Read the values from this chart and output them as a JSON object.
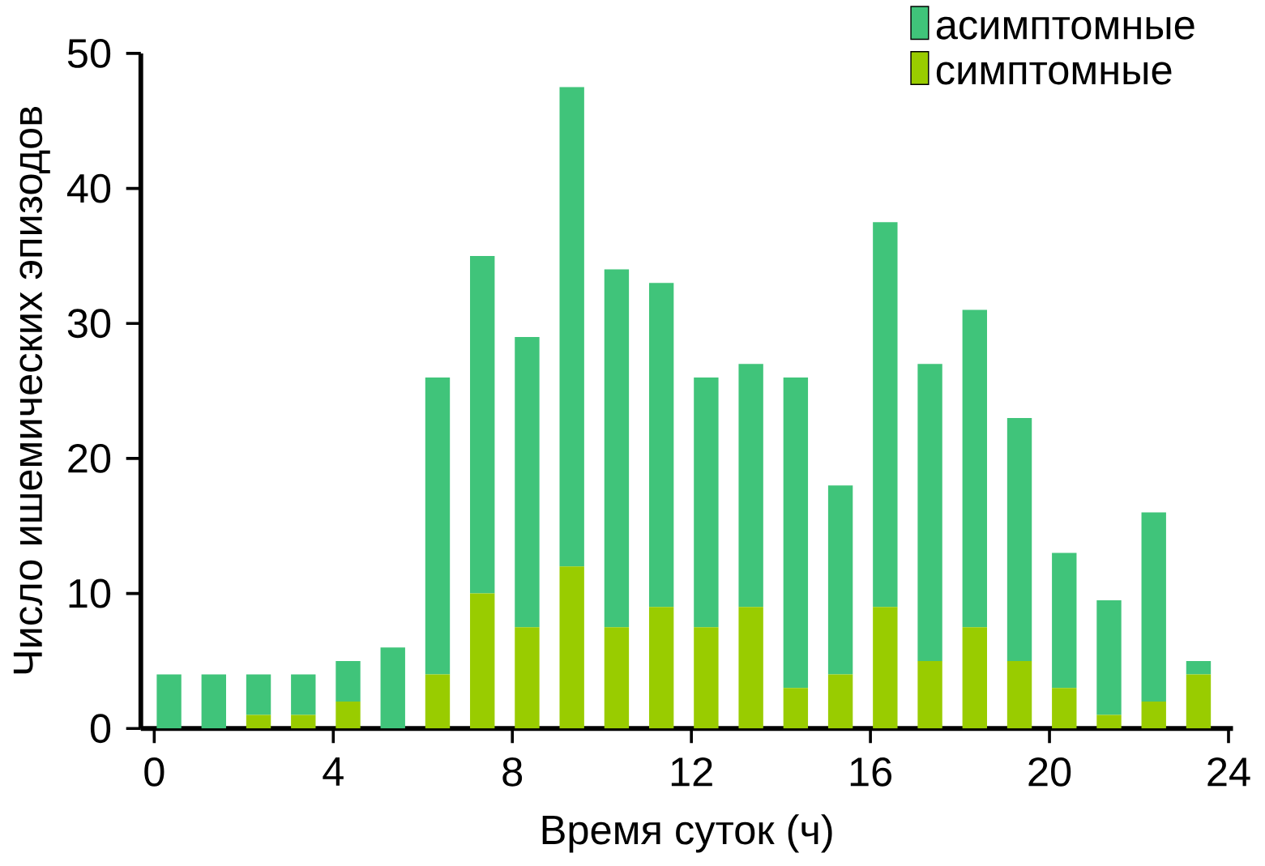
{
  "chart_data": {
    "type": "bar",
    "xlabel": "Время суток (ч)",
    "ylabel": "Число ишемических эпизодов",
    "x": [
      0.33,
      1.33,
      2.33,
      3.33,
      4.33,
      5.33,
      6.33,
      7.33,
      8.33,
      9.33,
      10.33,
      11.33,
      12.33,
      13.33,
      14.33,
      15.33,
      16.33,
      17.33,
      18.33,
      19.33,
      20.33,
      21.33,
      22.33,
      23.33
    ],
    "stacked": true,
    "series": [
      {
        "name": "симптомные",
        "color": "#99cc00",
        "values": [
          0,
          0,
          1,
          1,
          2,
          0,
          4,
          10,
          7.5,
          12,
          7.5,
          9,
          7.5,
          9,
          3,
          4,
          9,
          5,
          7.5,
          5,
          3,
          1,
          2,
          4
        ]
      },
      {
        "name": "асимптомные",
        "color": "#40c47a",
        "values": [
          4,
          4,
          3,
          3,
          3,
          6,
          22,
          25,
          21.5,
          35.5,
          26.5,
          24,
          18.5,
          18,
          23,
          14,
          28.5,
          22,
          23.5,
          18,
          10,
          8.5,
          14,
          1
        ]
      }
    ],
    "xlim": [
      -0.3,
      24.1
    ],
    "ylim": [
      0,
      50
    ],
    "xticks": [
      0,
      4,
      8,
      12,
      16,
      20,
      24
    ],
    "yticks": [
      0,
      10,
      20,
      30,
      40,
      50
    ],
    "legend": "top right",
    "grid": false
  }
}
